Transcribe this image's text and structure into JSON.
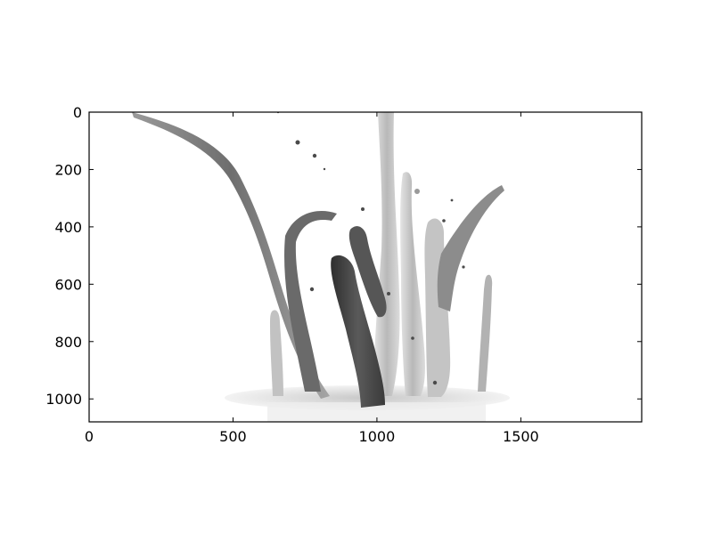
{
  "chart_data": {
    "type": "heatmap",
    "title": "",
    "xlabel": "",
    "ylabel": "",
    "colormap": "gray",
    "image_content": "grayscale photograph of a paint splash",
    "image_size": [
      1920,
      1080
    ],
    "xlim": [
      0,
      1920
    ],
    "ylim": [
      1080,
      0
    ],
    "y_inverted": true,
    "grid": false,
    "x_ticks": [
      0,
      500,
      1000,
      1500
    ],
    "y_ticks": [
      0,
      200,
      400,
      600,
      800,
      1000
    ],
    "x_tick_labels": [
      "0",
      "500",
      "1000",
      "1500"
    ],
    "y_tick_labels": [
      "0",
      "200",
      "400",
      "600",
      "800",
      "1000"
    ]
  },
  "colors": {
    "background": "#ffffff",
    "axes": "#000000",
    "splash_dark": "#3a3a3a",
    "splash_mid": "#8a8a8a",
    "splash_light": "#d6d6d6"
  }
}
